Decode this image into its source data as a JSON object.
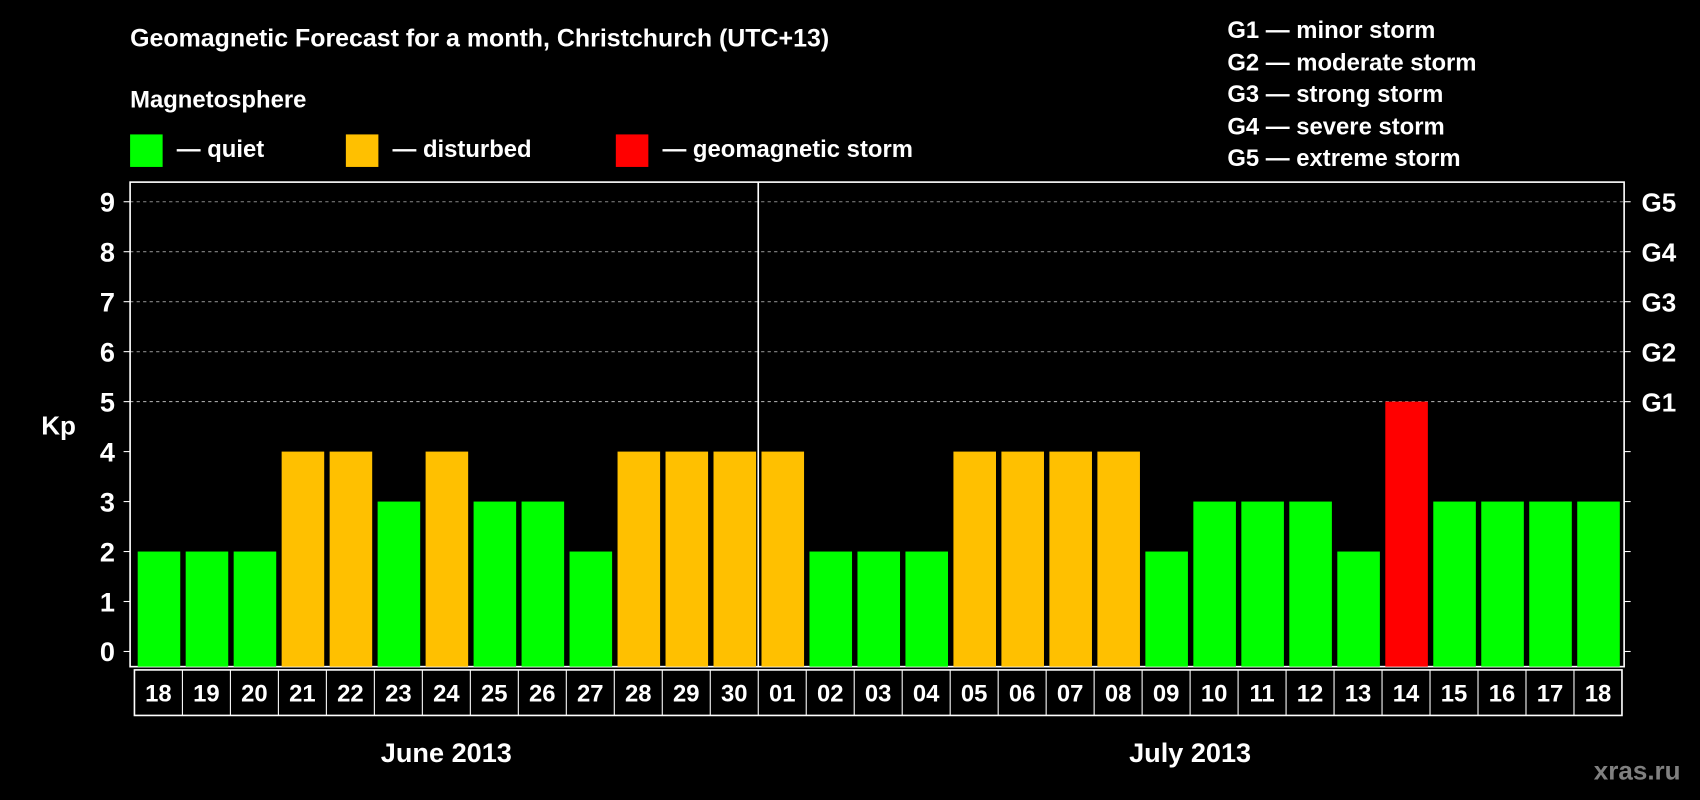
{
  "title": "Geomagnetic Forecast for a month, Christchurch (UTC+13)",
  "legend": {
    "heading": "Magnetosphere",
    "items": [
      {
        "label": "— quiet",
        "color": "#00ff00"
      },
      {
        "label": "— disturbed",
        "color": "#ffc000"
      },
      {
        "label": "— geomagnetic storm",
        "color": "#ff0000"
      }
    ]
  },
  "storm_scale": [
    "G1 — minor storm",
    "G2 — moderate storm",
    "G3 — strong storm",
    "G4 — severe storm",
    "G5 — extreme storm"
  ],
  "watermark": "xras.ru",
  "chart_data": {
    "type": "bar",
    "ylabel": "Kp",
    "ylim": [
      0,
      9
    ],
    "yticks": [
      "0",
      "1",
      "2",
      "3",
      "4",
      "5",
      "6",
      "7",
      "8",
      "9"
    ],
    "right_ticks": [
      {
        "kp": 5,
        "label": "G1"
      },
      {
        "kp": 6,
        "label": "G2"
      },
      {
        "kp": 7,
        "label": "G3"
      },
      {
        "kp": 8,
        "label": "G4"
      },
      {
        "kp": 9,
        "label": "G5"
      }
    ],
    "grid": true,
    "categories": [
      "18",
      "19",
      "20",
      "21",
      "22",
      "23",
      "24",
      "25",
      "26",
      "27",
      "28",
      "29",
      "30",
      "01",
      "02",
      "03",
      "04",
      "05",
      "06",
      "07",
      "08",
      "09",
      "10",
      "11",
      "12",
      "13",
      "14",
      "15",
      "16",
      "17",
      "18"
    ],
    "values": [
      2,
      2,
      2,
      4,
      4,
      3,
      4,
      3,
      3,
      2,
      4,
      4,
      4,
      4,
      2,
      2,
      2,
      4,
      4,
      4,
      4,
      2,
      3,
      3,
      3,
      2,
      5,
      3,
      3,
      3,
      3
    ],
    "months": [
      {
        "label": "June 2013",
        "days": 13
      },
      {
        "label": "July 2013",
        "days": 18
      }
    ],
    "colors": {
      "quiet": "#00ff00",
      "disturbed": "#ffc000",
      "storm": "#ff0000"
    }
  }
}
